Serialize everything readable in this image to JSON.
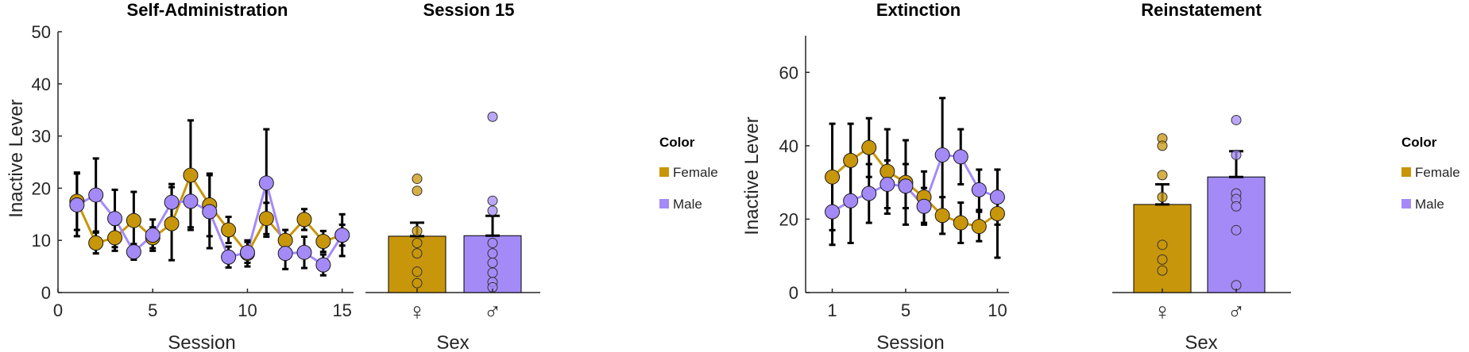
{
  "colors": {
    "female": "#C8960A",
    "male": "#A48AF7",
    "error": "#000000",
    "axis": "#262626"
  },
  "legend": {
    "title": "Color",
    "items": [
      {
        "label": "Female",
        "color": "#C8960A"
      },
      {
        "label": "Male",
        "color": "#A48AF7"
      }
    ]
  },
  "chart_data": [
    {
      "type": "line",
      "title": "Self-Administration",
      "xlabel": "Session",
      "ylabel": "Inactive Lever",
      "xlim": [
        0,
        15.6
      ],
      "ylim": [
        0,
        50
      ],
      "xticks": [
        0,
        5,
        10,
        15
      ],
      "yticks": [
        0,
        10,
        20,
        30,
        40,
        50
      ],
      "grid": false,
      "series": [
        {
          "name": "Female",
          "color": "#C8960A",
          "x": [
            1,
            2,
            3,
            4,
            5,
            6,
            7,
            8,
            9,
            10,
            11,
            12,
            13,
            14,
            15
          ],
          "y": [
            17.5,
            9.5,
            10.5,
            13.8,
            10.5,
            13.2,
            22.5,
            16.8,
            12.0,
            7.5,
            14.2,
            10.0,
            14.0,
            9.8,
            11.0
          ],
          "err": [
            5.5,
            2.0,
            2.5,
            5.5,
            2.0,
            7.0,
            10.5,
            6.0,
            2.5,
            2.5,
            3.0,
            2.0,
            2.0,
            2.0,
            2.0
          ]
        },
        {
          "name": "Male",
          "color": "#A48AF7",
          "x": [
            1,
            2,
            3,
            4,
            5,
            6,
            7,
            8,
            9,
            10,
            11,
            12,
            13,
            14,
            15
          ],
          "y": [
            16.8,
            18.7,
            14.2,
            7.8,
            11.0,
            17.3,
            17.5,
            15.5,
            6.8,
            7.7,
            21.0,
            7.5,
            7.7,
            5.3,
            11.0
          ],
          "err": [
            6.0,
            7.0,
            5.5,
            1.5,
            3.0,
            3.5,
            5.0,
            7.0,
            2.0,
            2.0,
            10.3,
            3.0,
            3.0,
            2.0,
            4.0
          ]
        }
      ]
    },
    {
      "type": "bar",
      "title": "Session 15",
      "xlabel": "Sex",
      "ylabel": "",
      "ylim": [
        0,
        50
      ],
      "categories": [
        "♀",
        "♂"
      ],
      "values": [
        10.8,
        10.9
      ],
      "err": [
        2.6,
        3.8
      ],
      "colors": [
        "#C8960A",
        "#A48AF7"
      ],
      "points": [
        [
          21.8,
          19.5,
          11.8,
          9.5,
          7.5,
          4.0,
          1.8
        ],
        [
          33.7,
          17.6,
          15.7,
          9.5,
          7.5,
          5.7,
          3.8,
          2.0,
          1.0
        ]
      ]
    },
    {
      "type": "line",
      "title": "Extinction",
      "xlabel": "Session",
      "ylabel": "Inactive Lever",
      "xlim": [
        0.5,
        10.5
      ],
      "ylim": [
        0,
        70
      ],
      "xticks": [
        1,
        5,
        10
      ],
      "yticks": [
        0,
        20,
        40,
        60
      ],
      "grid": false,
      "series": [
        {
          "name": "Female",
          "color": "#C8960A",
          "x": [
            1,
            2,
            3,
            4,
            5,
            6,
            7,
            8,
            9,
            10
          ],
          "y": [
            31.5,
            36.0,
            39.5,
            33.0,
            30.0,
            26.0,
            21.0,
            19.0,
            18.0,
            21.5
          ],
          "err": [
            14.5,
            10.0,
            8.0,
            11.5,
            11.5,
            7.0,
            5.0,
            5.5,
            4.0,
            12.0
          ]
        },
        {
          "name": "Male",
          "color": "#A48AF7",
          "x": [
            1,
            2,
            3,
            4,
            5,
            6,
            7,
            8,
            9,
            10
          ],
          "y": [
            22.0,
            25.0,
            27.0,
            29.5,
            29.0,
            23.5,
            37.5,
            37.0,
            28.0,
            26.0
          ],
          "err": [
            9.0,
            11.5,
            8.0,
            6.5,
            6.0,
            5.0,
            15.5,
            7.5,
            5.5,
            7.5
          ]
        }
      ]
    },
    {
      "type": "bar",
      "title": "Reinstatement",
      "xlabel": "Sex",
      "ylabel": "",
      "ylim": [
        0,
        70
      ],
      "categories": [
        "♀",
        "♂"
      ],
      "values": [
        24.0,
        31.5
      ],
      "err": [
        5.5,
        7.0
      ],
      "colors": [
        "#C8960A",
        "#A48AF7"
      ],
      "points": [
        [
          42.0,
          40.0,
          32.0,
          26.0,
          13.0,
          9.0,
          6.0
        ],
        [
          47.0,
          37.5,
          27.0,
          25.5,
          23.5,
          17.0,
          2.0
        ]
      ]
    }
  ]
}
